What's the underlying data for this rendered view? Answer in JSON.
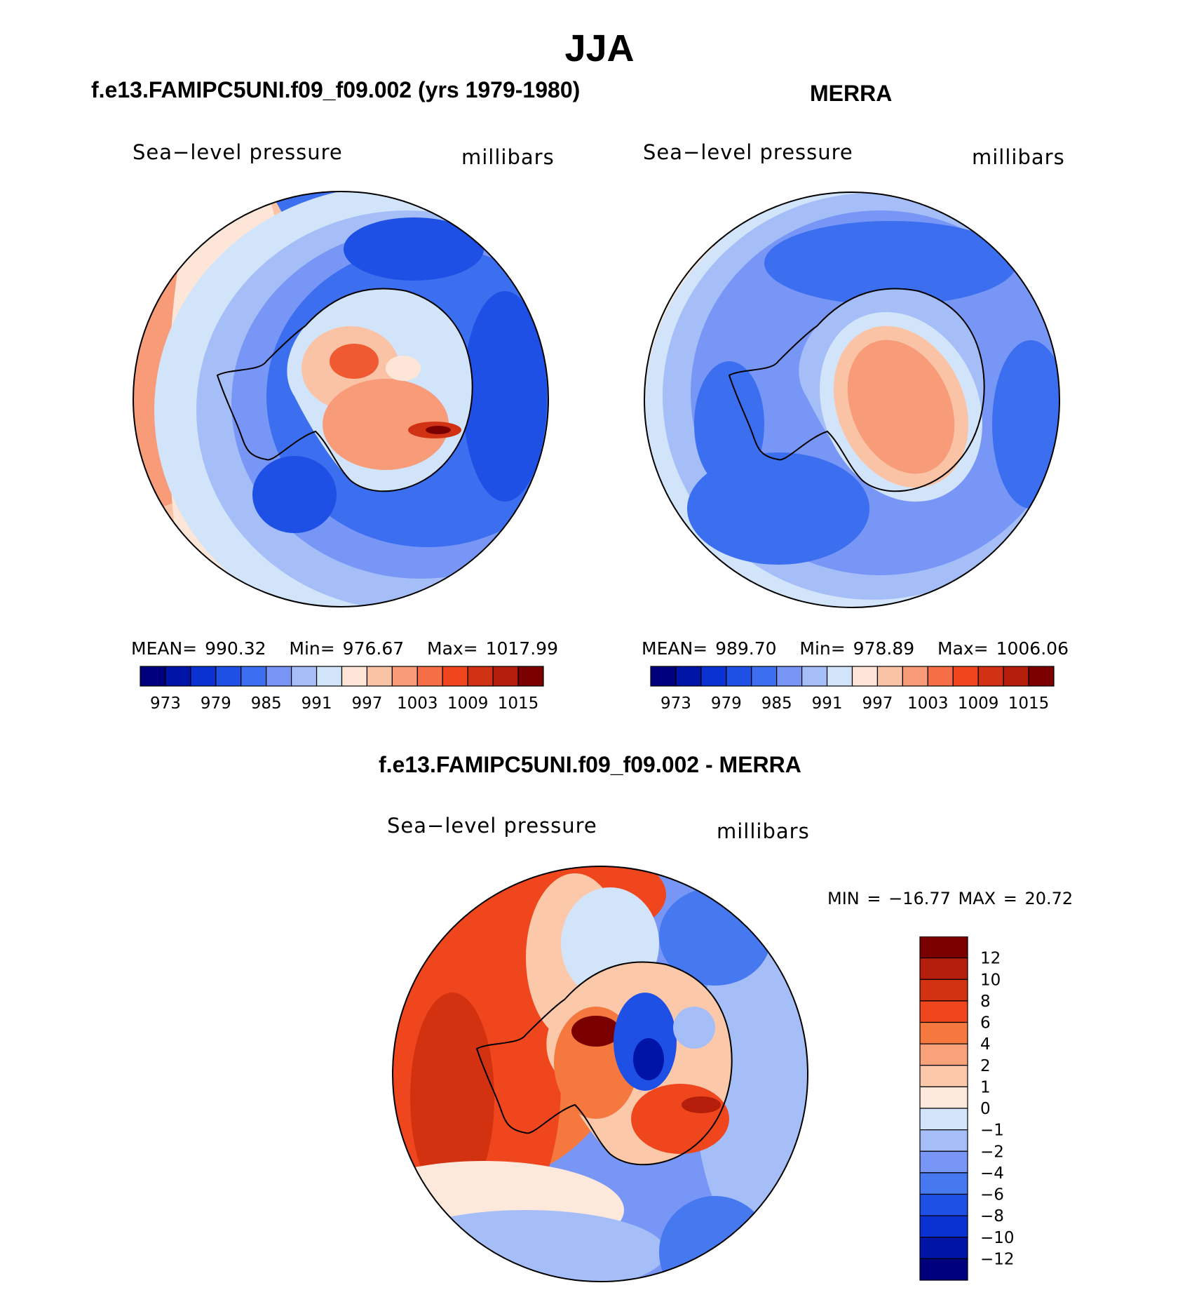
{
  "title": "JJA",
  "panels": [
    {
      "title": "f.e13.FAMIPC5UNI.f09_f09.002 (yrs 1979-1980)",
      "variable": "Sea−level pressure",
      "units": "millibars",
      "stats": {
        "mean_label": "MEAN=",
        "mean": "990.32",
        "min_label": "Min=",
        "min": "976.67",
        "max_label": "Max=",
        "max": "1017.99"
      }
    },
    {
      "title": "MERRA",
      "variable": "Sea−level pressure",
      "units": "millibars",
      "stats": {
        "mean_label": "MEAN=",
        "mean": "989.70",
        "min_label": "Min=",
        "min": "978.89",
        "max_label": "Max=",
        "max": "1006.06"
      }
    },
    {
      "title": "f.e13.FAMIPC5UNI.f09_f09.002 - MERRA",
      "variable": "Sea−level pressure",
      "units": "millibars",
      "stats_text": "MIN = −16.77 MAX =   20.72"
    }
  ],
  "colorbar_abs": {
    "colors": [
      "#00007f",
      "#0014a8",
      "#0a32d2",
      "#1e50e6",
      "#3c6ef0",
      "#7896f5",
      "#a5bef8",
      "#d2e4fa",
      "#fde6d7",
      "#fbc3a5",
      "#f79b78",
      "#f56e46",
      "#f0461e",
      "#d23214",
      "#b41e0a",
      "#7a0000"
    ],
    "labels": [
      "973",
      "979",
      "985",
      "991",
      "997",
      "1003",
      "1009",
      "1015"
    ]
  },
  "colorbar_diff": {
    "colors": [
      "#7a0000",
      "#b41e0a",
      "#d2320f",
      "#f0461e",
      "#f5783f",
      "#f9a178",
      "#fcc8aa",
      "#fde8dc",
      "#d2e4fa",
      "#a5bef8",
      "#7896f5",
      "#4678f0",
      "#1e50e6",
      "#0a32d2",
      "#0014a8",
      "#00007f"
    ],
    "labels": [
      "12",
      "10",
      "8",
      "6",
      "4",
      "2",
      "1",
      "0",
      "−1",
      "−2",
      "−4",
      "−6",
      "−8",
      "−10",
      "−12"
    ]
  },
  "colors": {
    "ocean_low": "#3c6ef0",
    "ocean_mid": "#7896f5",
    "ocean_light": "#a5bef8",
    "pale_blue": "#d2e4fa",
    "pale_red": "#fde6d7",
    "light_red": "#fbc3a5",
    "mid_red": "#f79b78",
    "red": "#f56e46",
    "deep_red": "#d23214",
    "dark_red": "#7a0000"
  }
}
